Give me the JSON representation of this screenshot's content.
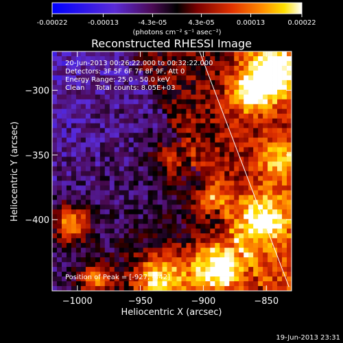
{
  "chart_data": {
    "type": "heatmap",
    "title": "Reconstructed RHESSI Image",
    "xlabel": "Heliocentric X (arcsec)",
    "ylabel": "Heliocentric Y (arcsec)",
    "xlim": [
      -1020,
      -830
    ],
    "ylim": [
      -455,
      -270
    ],
    "xticks": [
      -1000,
      -950,
      -900,
      -850
    ],
    "xtick_labels": [
      "−1000",
      "−950",
      "−900",
      "−850"
    ],
    "yticks": [
      -300,
      -350,
      -400
    ],
    "ytick_labels": [
      "−300",
      "−350",
      "−400"
    ],
    "colorbar": {
      "min": -0.00022,
      "max": 0.00022,
      "ticks": [
        -0.00022,
        -0.00013,
        -4.3e-05,
        4.3e-05,
        0.00013,
        0.00022
      ],
      "tick_labels": [
        "-0.00022",
        "-0.00013",
        "-4.3e-05",
        "4.3e-05",
        "0.00013",
        "0.00022"
      ],
      "unit_label": "(photons cm⁻² s⁻¹ asec⁻²)",
      "colors": [
        "#0000ff",
        "#5a2bd6",
        "#4b0a55",
        "#000000",
        "#7a0000",
        "#e23200",
        "#ff8c00",
        "#ffe000",
        "#ffffff"
      ]
    },
    "annotations": [
      "20-Jun-2013 00:26:22.000 to 00:32:22.000",
      "Detectors: 3F 5F 6F 7F 8F 9F, Att 0",
      "Energy Range: 25.0 - 50.0 keV",
      "Clean     Total counts: 8.05E+03"
    ],
    "peak_label": "Position of Peak = [-927, -442]",
    "limb_line": {
      "x": [
        -903,
        -832
      ],
      "y": [
        -270,
        -452
      ]
    },
    "grid": false
  },
  "footer": {
    "timestamp": "19-Jun-2013 23:31"
  }
}
